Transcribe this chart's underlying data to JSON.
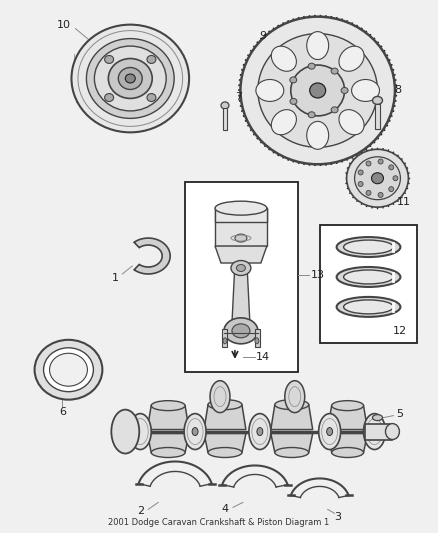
{
  "title": "2001 Dodge Caravan Crankshaft & Piston Diagram 1",
  "background_color": "#f0f0f0",
  "figsize": [
    4.38,
    5.33
  ],
  "dpi": 100,
  "line_color": "#444444",
  "dark_color": "#222222",
  "gray": "#888888",
  "light_gray": "#cccccc",
  "mid_gray": "#aaaaaa"
}
